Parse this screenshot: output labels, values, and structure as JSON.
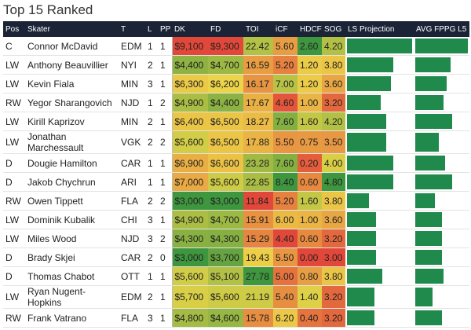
{
  "title": "Top 15 Ranked",
  "table": {
    "columns": [
      "Pos",
      "Skater",
      "T",
      "L",
      "PP",
      "DK",
      "FD",
      "TOI",
      "iCF",
      "HDCF",
      "SOG",
      "LS Projection",
      "AVG FPPG L5"
    ],
    "rows": [
      [
        "C",
        "Connor McDavid",
        "EDM",
        "1",
        "1",
        "$9,100",
        "$9,300",
        "22.42",
        "5.60",
        "2.60",
        "4.20",
        78,
        60
      ],
      [
        "LW",
        "Anthony Beauvillier",
        "NYI",
        "2",
        "1",
        "$4,400",
        "$4,700",
        "16.59",
        "5.20",
        "1.20",
        "3.80",
        55,
        40
      ],
      [
        "LW",
        "Kevin Fiala",
        "MIN",
        "3",
        "1",
        "$6,300",
        "$6,200",
        "16.17",
        "7.00",
        "1.20",
        "3.60",
        53,
        36
      ],
      [
        "RW",
        "Yegor Sharangovich",
        "NJD",
        "1",
        "2",
        "$4,900",
        "$4,400",
        "17.67",
        "4.60",
        "1.00",
        "3.20",
        40,
        32
      ],
      [
        "LW",
        "Kirill Kaprizov",
        "MIN",
        "2",
        "1",
        "$6,400",
        "$6,500",
        "18.27",
        "7.60",
        "1.60",
        "4.20",
        47,
        42
      ],
      [
        "LW",
        "Jonathan Marchessault",
        "VGK",
        "2",
        "2",
        "$5,600",
        "$6,500",
        "17.88",
        "5.50",
        "0.75",
        "3.50",
        47,
        27
      ],
      [
        "D",
        "Dougie Hamilton",
        "CAR",
        "1",
        "1",
        "$6,900",
        "$6,600",
        "23.28",
        "7.60",
        "0.20",
        "4.00",
        55,
        34
      ],
      [
        "D",
        "Jakob Chychrun",
        "ARI",
        "1",
        "1",
        "$7,000",
        "$5,600",
        "22.85",
        "8.40",
        "0.60",
        "4.80",
        55,
        42
      ],
      [
        "RW",
        "Owen Tippett",
        "FLA",
        "2",
        "2",
        "$3,000",
        "$3,000",
        "11.84",
        "5.20",
        "1.60",
        "3.80",
        26,
        22
      ],
      [
        "LW",
        "Dominik Kubalik",
        "CHI",
        "3",
        "1",
        "$4,900",
        "$4,700",
        "15.91",
        "6.00",
        "1.00",
        "3.60",
        35,
        30
      ],
      [
        "LW",
        "Miles Wood",
        "NJD",
        "3",
        "2",
        "$4,300",
        "$4,300",
        "15.29",
        "4.40",
        "0.60",
        "3.20",
        35,
        30
      ],
      [
        "D",
        "Brady Skjei",
        "CAR",
        "2",
        "0",
        "$3,000",
        "$3,700",
        "19.43",
        "5.50",
        "0.00",
        "3.00",
        35,
        30
      ],
      [
        "D",
        "Thomas Chabot",
        "OTT",
        "1",
        "1",
        "$5,600",
        "$5,100",
        "27.78",
        "5.00",
        "0.80",
        "3.80",
        42,
        32
      ],
      [
        "LW",
        "Ryan Nugent-Hopkins",
        "EDM",
        "2",
        "1",
        "$5,700",
        "$5,600",
        "21.19",
        "5.40",
        "1.40",
        "3.20",
        33,
        20
      ],
      [
        "RW",
        "Frank Vatrano",
        "FLA",
        "3",
        "1",
        "$4,800",
        "$4,600",
        "15.78",
        "6.20",
        "0.40",
        "3.20",
        33,
        30
      ]
    ]
  }
}
